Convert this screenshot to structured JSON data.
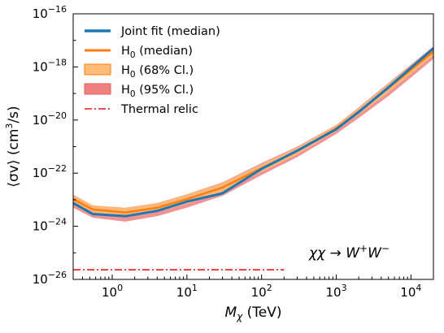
{
  "chart_data": {
    "type": "line",
    "xlabel": {
      "main": "M",
      "sub": "χ",
      "unit": " (TeV)"
    },
    "ylabel": {
      "main": "⟨σv⟩ (cm",
      "sup": "3",
      "unit": "/s)"
    },
    "x_scale": "log",
    "y_scale": "log",
    "xlim": [
      0.3,
      20000
    ],
    "ylim": [
      1e-26,
      1e-16
    ],
    "x_ticks": [
      {
        "value": 1,
        "base": "10",
        "exp": "0"
      },
      {
        "value": 10,
        "base": "10",
        "exp": "1"
      },
      {
        "value": 100,
        "base": "10",
        "exp": "2"
      },
      {
        "value": 1000,
        "base": "10",
        "exp": "3"
      },
      {
        "value": 10000,
        "base": "10",
        "exp": "4"
      }
    ],
    "y_ticks": [
      {
        "value": 1e-26,
        "base": "10",
        "exp": "−26"
      },
      {
        "value": 1e-24,
        "base": "10",
        "exp": "−24"
      },
      {
        "value": 1e-22,
        "base": "10",
        "exp": "−22"
      },
      {
        "value": 1e-20,
        "base": "10",
        "exp": "−20"
      },
      {
        "value": 1e-18,
        "base": "10",
        "exp": "−18"
      },
      {
        "value": 1e-16,
        "base": "10",
        "exp": "−16"
      }
    ],
    "x": [
      0.3,
      0.55,
      1.5,
      4,
      10,
      30,
      100,
      300,
      1000,
      2000,
      5000,
      20000
    ],
    "series": {
      "band95": {
        "lower": [
          5e-24,
          2.1e-24,
          1.5e-24,
          2.4e-24,
          5e-24,
          1.4e-23,
          8.5e-23,
          4e-22,
          3e-21,
          1.2e-20,
          8e-20,
          2e-18
        ],
        "upper": [
          1.5e-23,
          6e-24,
          5e-24,
          7.5e-24,
          1.6e-23,
          4.5e-23,
          2.4e-22,
          1e-21,
          6.5e-21,
          3e-20,
          2.5e-19,
          6e-18
        ]
      },
      "band68": {
        "lower": [
          7e-24,
          3e-24,
          2.2e-24,
          3.4e-24,
          7e-24,
          2e-23,
          1.1e-22,
          5e-22,
          3.8e-21,
          1.6e-20,
          1.1e-19,
          2.7e-18
        ]
      },
      "h0_median": [
        1.05e-23,
        4.3e-24,
        3.3e-24,
        5e-24,
        1.05e-23,
        2.9e-23,
        1.55e-22,
        6.8e-22,
        4.9e-21,
        2.1e-20,
        1.6e-19,
        3.8e-18
      ],
      "joint_fit": [
        7.5e-24,
        2.9e-24,
        2.4e-24,
        3.8e-24,
        8.5e-24,
        1.75e-23,
        1.45e-22,
        7e-22,
        4.5e-21,
        2e-20,
        1.7e-19,
        5e-18
      ],
      "thermal_relic": {
        "x": [
          0.3,
          200
        ],
        "y": 2.3e-26
      }
    },
    "legend": {
      "placement": "top-left",
      "entries": [
        {
          "key": "joint",
          "prefix": "Joint fit (median)",
          "sub": "",
          "suffix": ""
        },
        {
          "key": "median",
          "prefix": "H",
          "sub": "0",
          "suffix": " (median)"
        },
        {
          "key": "band68",
          "prefix": "H",
          "sub": "0",
          "suffix": " (68% Cl.)"
        },
        {
          "key": "band95",
          "prefix": "H",
          "sub": "0",
          "suffix": " (95% Cl.)"
        },
        {
          "key": "relic",
          "prefix": "Thermal relic",
          "sub": "",
          "suffix": ""
        }
      ]
    },
    "annotation": {
      "lhs": "χχ",
      "arrow": " → ",
      "w1": "W",
      "sup1": "+",
      "w2": "W",
      "sup2": "−"
    },
    "colors": {
      "joint": "#1f77b4",
      "median": "#ff7f0e",
      "band68": "#ffbb78",
      "band95": "#f08080",
      "relic": "#e31a1c"
    },
    "grid": false
  }
}
